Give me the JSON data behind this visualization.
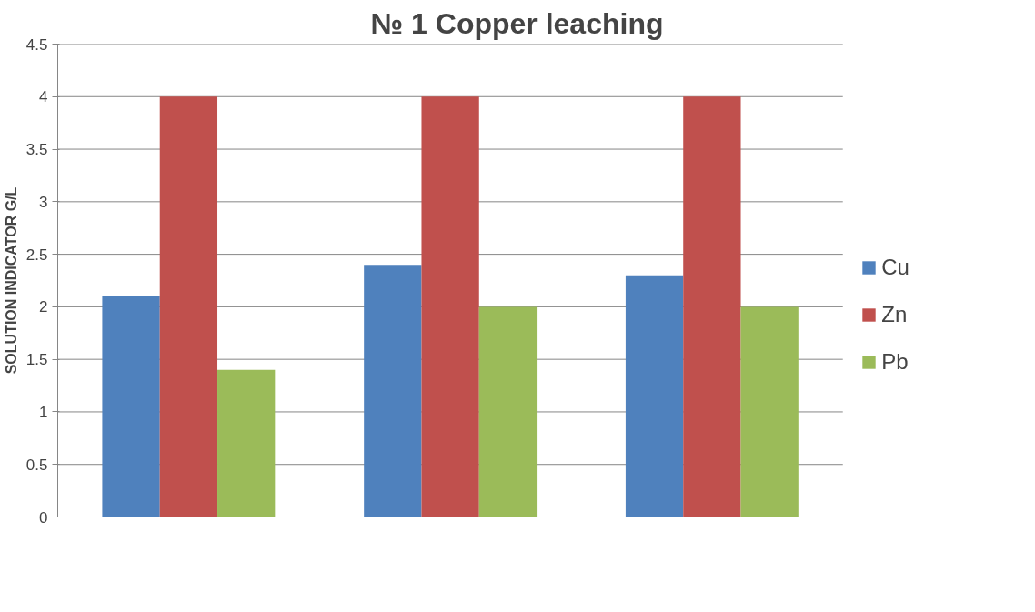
{
  "chart_data": {
    "type": "bar",
    "title": "№ 1 Copper leaching",
    "ylabel": "SOLUTION INDICATOR G/L",
    "categories": [
      null,
      null,
      null
    ],
    "series": [
      {
        "name": "Cu",
        "color": "#4f81bd",
        "values": [
          2.1,
          2.4,
          2.3
        ]
      },
      {
        "name": "Zn",
        "color": "#c0504d",
        "values": [
          4,
          4,
          4
        ]
      },
      {
        "name": "Pb",
        "color": "#9bbb59",
        "values": [
          1.4,
          2,
          2
        ]
      }
    ],
    "ylim": [
      0,
      4.5
    ],
    "yticks": [
      0,
      0.5,
      1,
      1.5,
      2,
      2.5,
      3,
      3.5,
      4,
      4.5
    ],
    "grid": "y",
    "legend": "right"
  }
}
